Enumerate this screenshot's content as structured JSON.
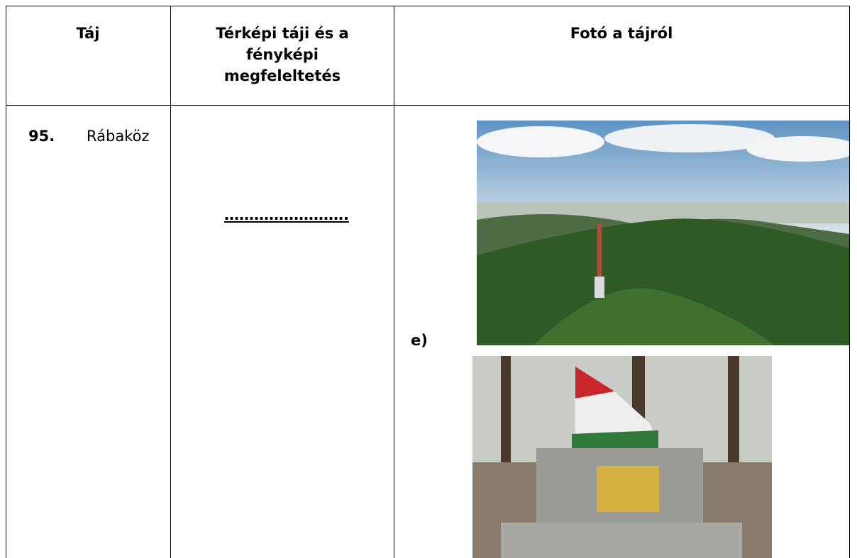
{
  "table": {
    "header": [
      "Táj",
      "Térképi táji és a fényképi megfeleltetés",
      "Fotó a tájról"
    ],
    "rows": [
      {
        "number": "95.",
        "name": "Rábaköz",
        "answer": "…………………….",
        "photo_label": "e)"
      }
    ]
  }
}
